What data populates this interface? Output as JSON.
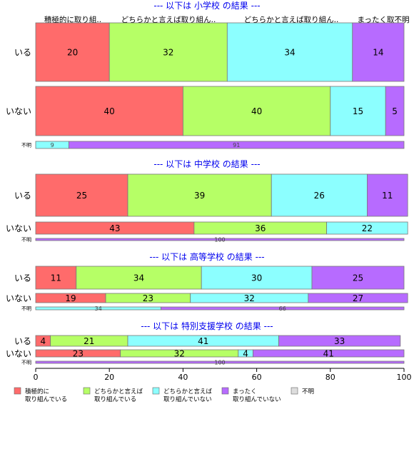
{
  "chart_data": {
    "type": "bar",
    "orientation": "horizontal",
    "stacked": true,
    "xlim": [
      0,
      100
    ],
    "x_ticks": [
      "0",
      "20",
      "40",
      "60",
      "80",
      "100"
    ],
    "colors": {
      "積極的に取り組んでいる": "#ff6b6b",
      "どちらかと言えば取り組んでいる": "#b6ff66",
      "どちらかと言えば取り組んでいない": "#8cffff",
      "まったく取り組んでいない": "#b76bff",
      "不明": "#dddddd"
    },
    "header_labels": [
      "積極的に取り組..",
      "どちらかと言えば取り組ん..",
      "どちらかと言えば取り組ん..",
      "まったく取不明"
    ],
    "legend": [
      {
        "label": "積極的に\n取り組んでいる",
        "color": "#ff6b6b"
      },
      {
        "label": "どちらかと言えば\n取り組んでいる",
        "color": "#b6ff66"
      },
      {
        "label": "どちらかと言えば\n取り組んでいない",
        "color": "#8cffff"
      },
      {
        "label": "まったく\n取り組んでいない",
        "color": "#b76bff"
      },
      {
        "label": "不明",
        "color": "#dddddd"
      }
    ],
    "panels": [
      {
        "title": "--- 以下は 小学校 の結果 ---",
        "rows": [
          {
            "label": "いる",
            "values": [
              20,
              32,
              34,
              14,
              0
            ]
          },
          {
            "label": "いない",
            "values": [
              40,
              40,
              15,
              5,
              0
            ]
          },
          {
            "label": "不明",
            "values": [
              0,
              0,
              9,
              91,
              0
            ],
            "small": true
          }
        ]
      },
      {
        "title": "--- 以下は 中学校 の結果 ---",
        "rows": [
          {
            "label": "いる",
            "values": [
              25,
              39,
              26,
              11,
              0
            ]
          },
          {
            "label": "いない",
            "values": [
              43,
              36,
              22,
              0,
              0
            ]
          },
          {
            "label": "不明",
            "values": [
              0,
              0,
              0,
              100,
              0
            ],
            "small": true
          }
        ]
      },
      {
        "title": "--- 以下は 高等学校 の結果 ---",
        "rows": [
          {
            "label": "いる",
            "values": [
              11,
              34,
              30,
              25,
              0
            ]
          },
          {
            "label": "いない",
            "values": [
              19,
              23,
              32,
              27,
              0
            ]
          },
          {
            "label": "不明",
            "values": [
              0,
              0,
              34,
              66,
              0
            ],
            "small": true
          }
        ]
      },
      {
        "title": "--- 以下は 特別支援学校 の結果 ---",
        "rows": [
          {
            "label": "いる",
            "values": [
              4,
              21,
              41,
              33,
              0
            ]
          },
          {
            "label": "いない",
            "values": [
              23,
              32,
              4,
              41,
              0
            ]
          },
          {
            "label": "不明",
            "values": [
              0,
              0,
              0,
              100,
              0
            ],
            "small": true
          }
        ]
      }
    ]
  }
}
